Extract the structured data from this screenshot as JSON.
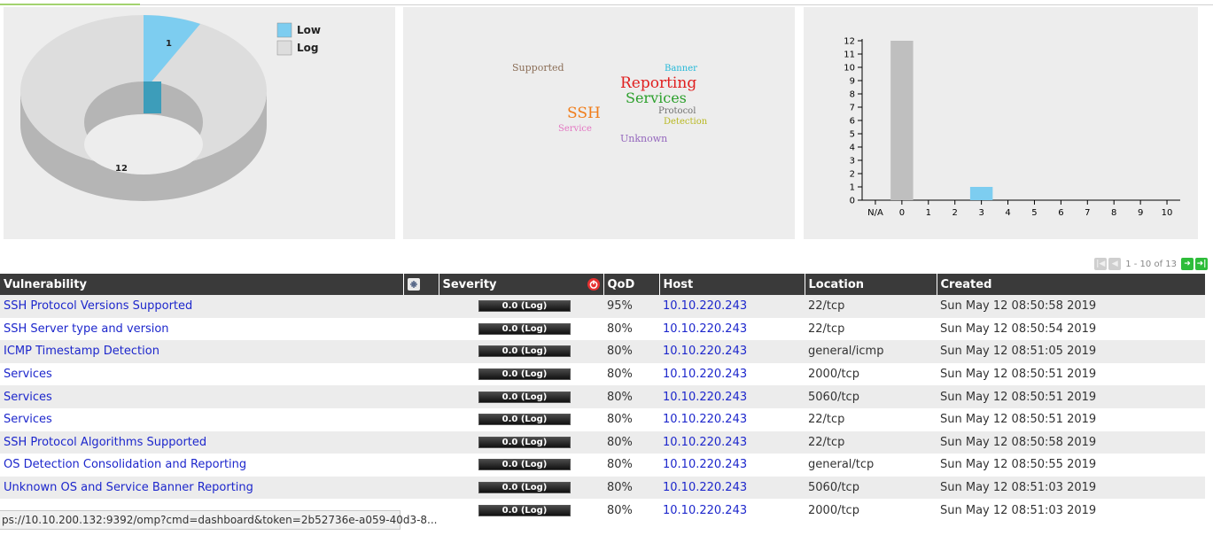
{
  "severity_donut": {
    "legend": [
      {
        "label": "Low",
        "color": "#7dcdf0"
      },
      {
        "label": "Log",
        "color": "#dddddd"
      }
    ],
    "values": {
      "low": "1",
      "log": "12"
    }
  },
  "word_cloud": {
    "words": [
      {
        "text": "Supported",
        "color": "#8b6e57"
      },
      {
        "text": "Banner",
        "color": "#22b8d8"
      },
      {
        "text": "Reporting",
        "color": "#e02020"
      },
      {
        "text": "Services",
        "color": "#2ca02c"
      },
      {
        "text": "SSH",
        "color": "#f07d1a"
      },
      {
        "text": "Protocol",
        "color": "#707070"
      },
      {
        "text": "Detection",
        "color": "#b8b820"
      },
      {
        "text": "Service",
        "color": "#e377c2"
      },
      {
        "text": "Unknown",
        "color": "#9467bd"
      }
    ]
  },
  "chart_data": {
    "type": "bar",
    "categories": [
      "N/A",
      "0",
      "1",
      "2",
      "3",
      "4",
      "5",
      "6",
      "7",
      "8",
      "9",
      "10"
    ],
    "values": [
      0,
      12,
      0,
      0,
      1,
      0,
      0,
      0,
      0,
      0,
      0,
      0
    ],
    "bar_colors": {
      "0": "#bfbfbf",
      "3": "#7dcdf0"
    },
    "yticks": [
      0,
      1,
      2,
      3,
      4,
      5,
      6,
      7,
      8,
      9,
      10,
      11,
      12
    ],
    "ylim": [
      0,
      12
    ],
    "title": "",
    "xlabel": "",
    "ylabel": ""
  },
  "pager": {
    "text": "1 - 10 of 13"
  },
  "table": {
    "headers": {
      "vulnerability": "Vulnerability",
      "severity": "Severity",
      "qod": "QoD",
      "host": "Host",
      "location": "Location",
      "created": "Created"
    },
    "rows": [
      {
        "name": "SSH Protocol Versions Supported",
        "severity": "0.0 (Log)",
        "qod": "95%",
        "host": "10.10.220.243",
        "location": "22/tcp",
        "created": "Sun May 12 08:50:58 2019"
      },
      {
        "name": "SSH Server type and version",
        "severity": "0.0 (Log)",
        "qod": "80%",
        "host": "10.10.220.243",
        "location": "22/tcp",
        "created": "Sun May 12 08:50:54 2019"
      },
      {
        "name": "ICMP Timestamp Detection",
        "severity": "0.0 (Log)",
        "qod": "80%",
        "host": "10.10.220.243",
        "location": "general/icmp",
        "created": "Sun May 12 08:51:05 2019"
      },
      {
        "name": "Services",
        "severity": "0.0 (Log)",
        "qod": "80%",
        "host": "10.10.220.243",
        "location": "2000/tcp",
        "created": "Sun May 12 08:50:51 2019"
      },
      {
        "name": "Services",
        "severity": "0.0 (Log)",
        "qod": "80%",
        "host": "10.10.220.243",
        "location": "5060/tcp",
        "created": "Sun May 12 08:50:51 2019"
      },
      {
        "name": "Services",
        "severity": "0.0 (Log)",
        "qod": "80%",
        "host": "10.10.220.243",
        "location": "22/tcp",
        "created": "Sun May 12 08:50:51 2019"
      },
      {
        "name": "SSH Protocol Algorithms Supported",
        "severity": "0.0 (Log)",
        "qod": "80%",
        "host": "10.10.220.243",
        "location": "22/tcp",
        "created": "Sun May 12 08:50:58 2019"
      },
      {
        "name": "OS Detection Consolidation and Reporting",
        "severity": "0.0 (Log)",
        "qod": "80%",
        "host": "10.10.220.243",
        "location": "general/tcp",
        "created": "Sun May 12 08:50:55 2019"
      },
      {
        "name": "Unknown OS and Service Banner Reporting",
        "severity": "0.0 (Log)",
        "qod": "80%",
        "host": "10.10.220.243",
        "location": "5060/tcp",
        "created": "Sun May 12 08:51:03 2019"
      },
      {
        "name": "",
        "severity": "0.0 (Log)",
        "qod": "80%",
        "host": "10.10.220.243",
        "location": "2000/tcp",
        "created": "Sun May 12 08:51:03 2019"
      }
    ]
  },
  "status_bar": {
    "url": "ps://10.10.200.132:9392/omp?cmd=dashboard&token=2b52736e-a059-40d3-8..."
  }
}
